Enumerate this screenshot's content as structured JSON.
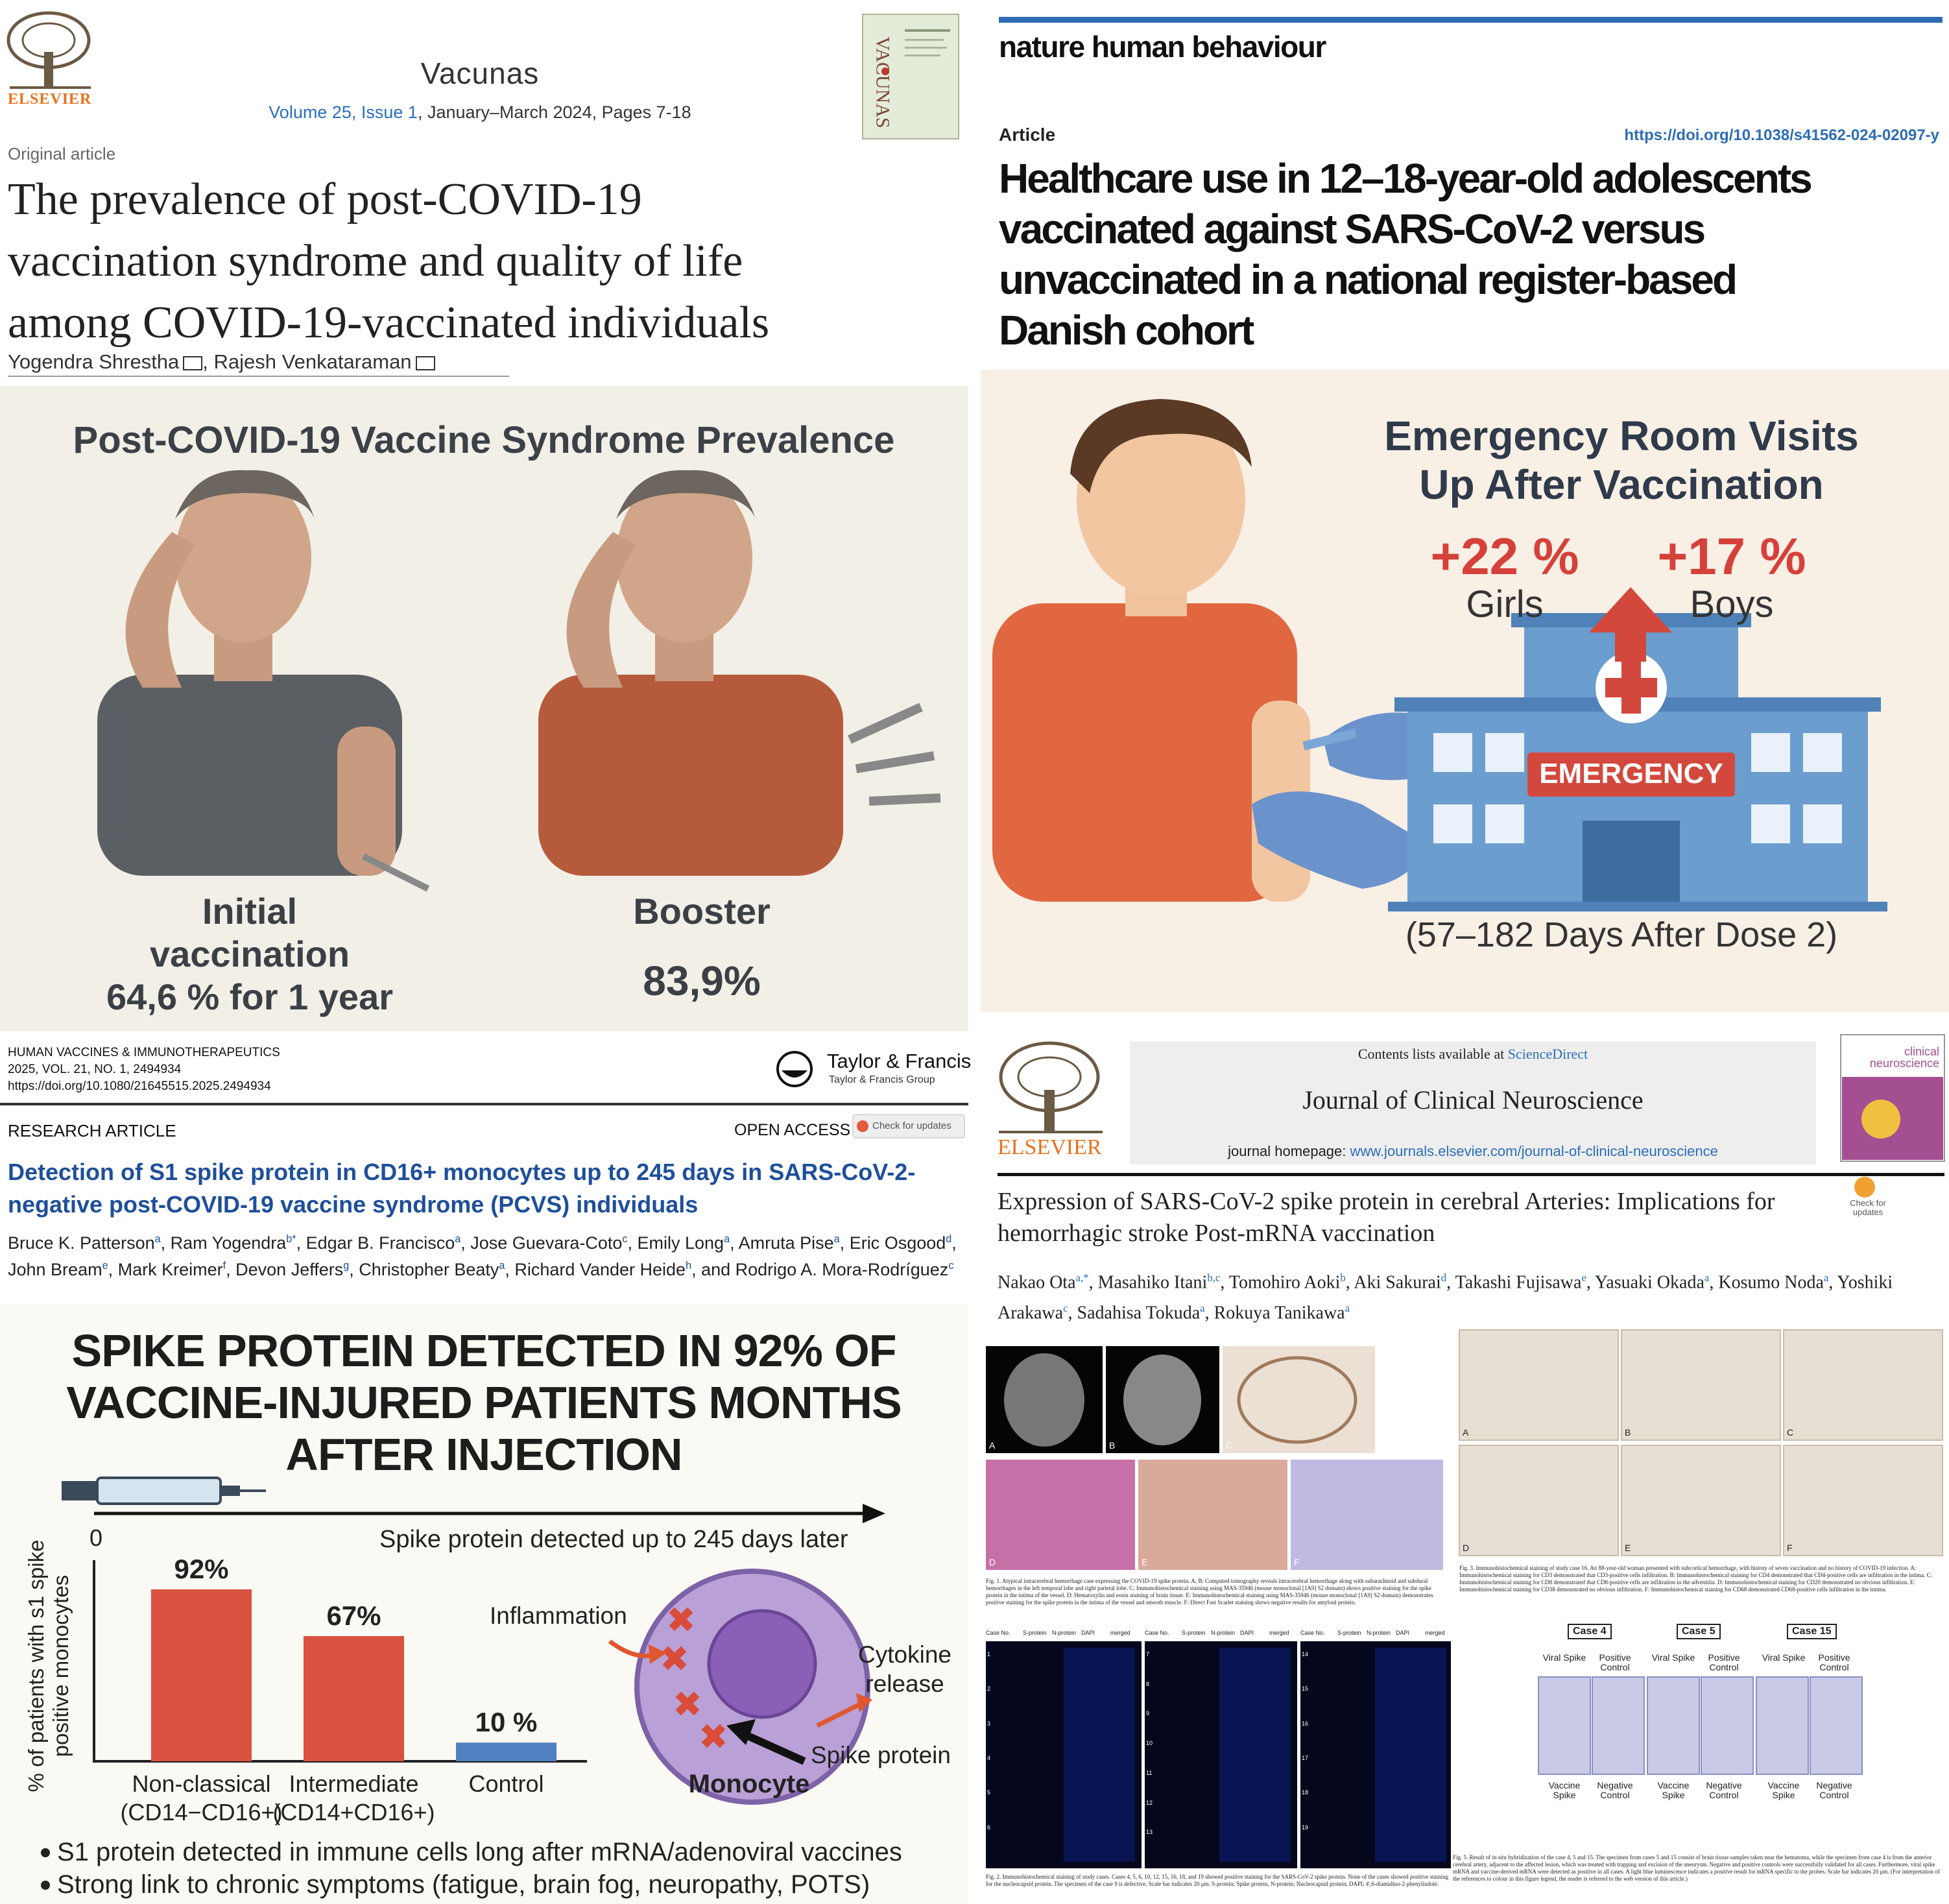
{
  "vacunas_article": {
    "publisher": "ELSEVIER",
    "journal": "Vacunas",
    "issue_link": "Volume 25, Issue 1",
    "issue_rest": ", January–March 2024, Pages 7-18",
    "cover_title": "VACUNAS",
    "article_type": "Original article",
    "title_lines": [
      "The prevalence of post-COVID-19",
      "vaccination syndrome and quality of life",
      "among COVID-19-vaccinated individuals"
    ],
    "authors": [
      "Yogendra Shrestha",
      "Rajesh Venkataraman"
    ],
    "authors_separator": ", ",
    "infographic": {
      "title": "Post-COVID-19 Vaccine Syndrome Prevalence",
      "left_label_lines": [
        "Initial",
        "vaccination",
        "64,6 % for 1 year"
      ],
      "right_label": "Booster",
      "right_value": "83,9%"
    }
  },
  "nhb_article": {
    "journal": "nature human behaviour",
    "article_type": "Article",
    "doi": "https://doi.org/10.1038/s41562-024-02097-y",
    "title_lines": [
      "Healthcare use in 12–18-year-old adolescents",
      "vaccinated against SARS-CoV-2 versus",
      "unvaccinated in a national register-based",
      "Danish cohort"
    ],
    "infographic": {
      "title_lines": [
        "Emergency Room Visits",
        "Up After Vaccination"
      ],
      "girls_value": "+22 %",
      "girls_label": "Girls",
      "boys_value": "+17 %",
      "boys_label": "Boys",
      "sign": "EMERGENCY",
      "footnote": "(57–182 Days After Dose 2)"
    }
  },
  "hvi_article": {
    "journal": "HUMAN VACCINES & IMMUNOTHERAPEUTICS",
    "volume": "2025, VOL. 21, NO. 1, 2494934",
    "doi": "https://doi.org/10.1080/21645515.2025.2494934",
    "publisher": "Taylor & Francis",
    "publisher_group": "Taylor & Francis Group",
    "article_type": "RESEARCH ARTICLE",
    "access": "OPEN ACCESS",
    "updates": "Check for updates",
    "title": "Detection of S1 spike protein in CD16+ monocytes up to 245 days in SARS-CoV-2-negative post-COVID-19 vaccine syndrome (PCVS) individuals",
    "authors_separator": ", ",
    "authors": [
      {
        "name": "Bruce K. Patterson",
        "affiliation": "a"
      },
      {
        "name": "Ram Yogendra",
        "affiliation": "b*"
      },
      {
        "name": "Edgar B. Francisco",
        "affiliation": "a"
      },
      {
        "name": "Jose Guevara-Coto",
        "affiliation": "c"
      },
      {
        "name": "Emily Long",
        "affiliation": "a"
      },
      {
        "name": "Amruta Pise",
        "affiliation": "a"
      },
      {
        "name": "Eric Osgood",
        "affiliation": "d"
      },
      {
        "name": "John Bream",
        "affiliation": "e"
      },
      {
        "name": "Mark Kreimer",
        "affiliation": "f"
      },
      {
        "name": "Devon Jeffers",
        "affiliation": "g"
      },
      {
        "name": "Christopher Beaty",
        "affiliation": "a"
      },
      {
        "name": "Richard Vander Heide",
        "affiliation": "h"
      },
      {
        "name": "and Rodrigo A. Mora-Rodríguez",
        "affiliation": "c"
      }
    ],
    "infographic": {
      "title_lines": [
        "SPIKE PROTEIN DETECTED IN 92% OF",
        "VACCINE-INJURED PATIENTS MONTHS",
        "AFTER INJECTION"
      ],
      "timeline_start": "0",
      "timeline_label": "Spike protein detected up to 245 days later",
      "inflammation": "Inflammation",
      "cytokine_lines": [
        "Cytokine",
        "release"
      ],
      "spike_label": "Spike protein",
      "cell_label": "Monocyte",
      "bullets": [
        "S1 protein detected in immune cells long after mRNA/adenoviral vaccines",
        "Strong link to chronic symptoms (fatigue, brain fog, neuropathy, POTS)"
      ]
    }
  },
  "jcn_article": {
    "contents_prefix": "Contents lists available at ",
    "contents_link": "ScienceDirect",
    "journal": "Journal of Clinical Neuroscience",
    "homepage_prefix": "journal homepage: ",
    "homepage_link": "www.journals.elsevier.com/journal-of-clinical-neuroscience",
    "publisher": "ELSEVIER",
    "cover_title": "clinical neuroscience",
    "updates": "Check for updates",
    "title": "Expression of SARS-CoV-2 spike protein in cerebral Arteries: Implications for hemorrhagic stroke Post-mRNA vaccination",
    "authors_separator": ", ",
    "authors": [
      {
        "name": "Nakao Ota",
        "affiliation": "a,*"
      },
      {
        "name": "Masahiko Itani",
        "affiliation": "b,c"
      },
      {
        "name": "Tomohiro Aoki",
        "affiliation": "b"
      },
      {
        "name": "Aki Sakurai",
        "affiliation": "d"
      },
      {
        "name": "Takashi Fujisawa",
        "affiliation": "e"
      },
      {
        "name": "Yasuaki Okada",
        "affiliation": "a"
      },
      {
        "name": "Kosumo Noda",
        "affiliation": "a"
      },
      {
        "name": "Yoshiki Arakawa",
        "affiliation": "c"
      },
      {
        "name": "Sadahisa Tokuda",
        "affiliation": "a"
      },
      {
        "name": "Rokuya Tanikawa",
        "affiliation": "a"
      }
    ],
    "panel_letters": [
      "A",
      "B",
      "C",
      "D",
      "E",
      "F"
    ],
    "fig1_caption": "Fig. 1. Atypical intracerebral hemorrhage case expressing the COVID-19 spike protein. A, B: Computed tomography reveals intracerebral hemorrhage along with subarachnoid and subdural hemorrhages in the left temporal lobe and right parietal lobe. C: Immunohistochemical staining using MAS-35946 (mouse monoclonal [1A9] S2 domain) shows positive staining for the spike protein in the intima of the vessel. D: Hematoxylin and eosin staining of brain tissue. E: Immunohistochemical staining using MAS-35946 (mouse monoclonal [1A9] S2 domain) demonstrates positive staining for the spike protein in the intima of the vessel and smooth muscle. F: Direct Fast Scarlet staining shows negative results for amyloid protein.",
    "fig2_headers": [
      "Case No.",
      "S-protein",
      "N-protein",
      "DAPI",
      "merged"
    ],
    "fig2_case_numbers": [
      [
        1,
        2,
        3,
        4,
        5,
        6
      ],
      [
        7,
        8,
        9,
        10,
        11,
        12,
        13
      ],
      [
        14,
        15,
        16,
        17,
        18,
        19
      ]
    ],
    "fig2_caption": "Fig. 2. Immunohistochemical staining of study cases. Cases 4, 5, 6, 10, 12, 15, 16, 18, and 19 showed positive staining for the SARS-CoV-2 spike protein. None of the cases showed positive staining for the nucleocapsid protein. The specimen of the case 9 is defective. Scale bar indicates 20 μm. S-protein; Spike protein, N-protein; Nucleocapsid protein, DAPI; 4′,6-diamidino-2-phenylindole.",
    "fig3_caption": "Fig. 3. Immunohistochemical staining of study case 16. An 88-year-old woman presented with subcortical hemorrhage, with history of seven vaccination and no history of COVID-19 infection. A: Immunohistochemical staining for CD3 demonstrated that CD3-positive cells infiltration. B: Immunohistochemical staining for CD4 demonstrated that CD4-positive cells are infiltration in the intima. C: Immunohistochemical staining for CD8 demonstrated that CD8-positive cells are infiltration in the adventitia. D: Immunohistochemical staining for CD20 demonstrated no obvious infiltration. E: Immunohistochemical staining for CD38 demonstrated no obvious infiltration. F: Immunohistochemical staining for CD68 demonstrated CD68-positive cells infiltration in the intima.",
    "fig5_cases": [
      "Case 4",
      "Case 5",
      "Case 15"
    ],
    "fig5_top_labels": [
      "Viral Spike",
      "Positive Control"
    ],
    "fig5_bottom_labels": [
      "Vaccine Spike",
      "Negative Control"
    ],
    "fig5_caption": "Fig. 5. Result of in situ hybridization of the case 4, 5 and 15. The specimen from cases 5 and 15 consist of brain tissue samples taken near the hematoma, while the specimen from case 4 is from the anterior cerebral artery, adjacent to the affected lesion, which was treated with trapping and excision of the aneurysm. Negative and positive controls were successfully validated for all cases. Furthermore, viral spike mRNA and vaccine-derived mRNA were detected as positive in all cases. A light blue luminescence indicates a positive result for mRNA specific to the probes. Scale bar indicates 20 μm. (For interpretation of the references to colour in this figure legend, the reader is referred to the web version of this article.)"
  },
  "chart_data": {
    "type": "bar",
    "ylabel": "% of patients with s1 spike positive monocytes",
    "categories": [
      "Non-classical\n(CD14−CD16+)",
      "Intermediate\n(CD14+CD16+)",
      "Control"
    ],
    "values": [
      92,
      67,
      10
    ],
    "value_labels": [
      "92%",
      "67%",
      "10 %"
    ],
    "colors": [
      "#d9513f",
      "#d9513f",
      "#4f80bf"
    ],
    "ylim": [
      0,
      100
    ]
  }
}
